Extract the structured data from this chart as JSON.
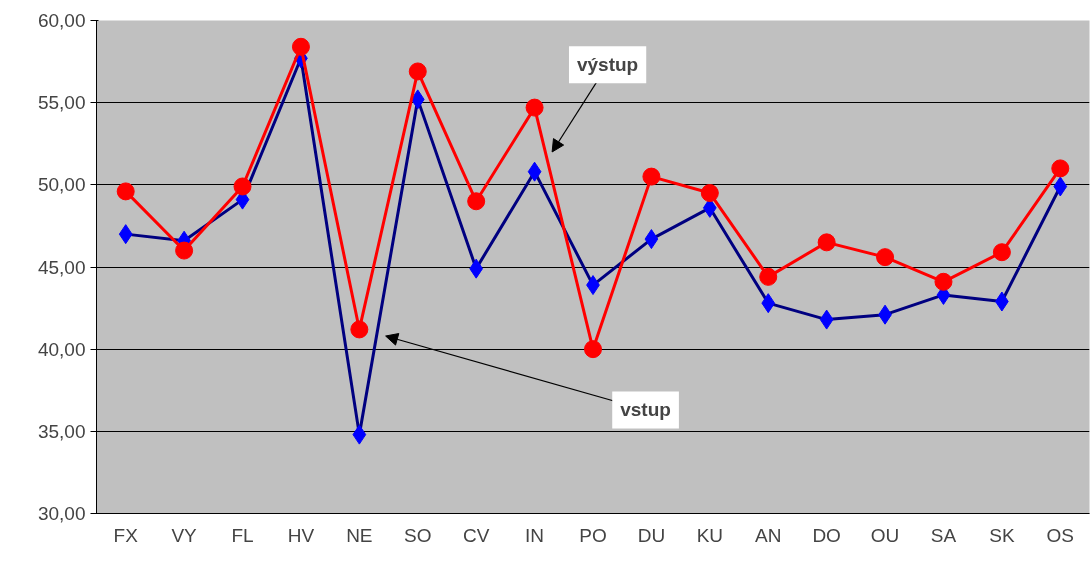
{
  "chart_data": {
    "type": "line",
    "categories": [
      "FX",
      "VY",
      "FL",
      "HV",
      "NE",
      "SO",
      "CV",
      "IN",
      "PO",
      "DU",
      "KU",
      "AN",
      "DO",
      "OU",
      "SA",
      "SK",
      "OS"
    ],
    "series": [
      {
        "color": "#000080",
        "marker": "diamond",
        "values": [
          47.0,
          46.6,
          49.1,
          57.7,
          34.8,
          55.2,
          44.9,
          50.8,
          43.9,
          46.7,
          48.6,
          42.8,
          41.8,
          42.1,
          43.3,
          42.9,
          49.9
        ]
      },
      {
        "color": "#ff0000",
        "marker": "circle",
        "values": [
          49.6,
          46.0,
          49.9,
          58.4,
          41.2,
          56.9,
          49.0,
          54.7,
          40.0,
          50.5,
          49.5,
          44.4,
          46.5,
          45.6,
          44.1,
          45.9,
          51.0
        ]
      }
    ],
    "ylim": [
      30,
      60
    ],
    "yticks": [
      {
        "value": 30,
        "label": "30,00"
      },
      {
        "value": 35,
        "label": "35,00"
      },
      {
        "value": 40,
        "label": "40,00"
      },
      {
        "value": 45,
        "label": "45,00"
      },
      {
        "value": 50,
        "label": "50,00"
      },
      {
        "value": 55,
        "label": "55,00"
      },
      {
        "value": 60,
        "label": "60,00"
      }
    ],
    "grid": "y",
    "annotations": [
      "výstup",
      "vstup"
    ]
  }
}
